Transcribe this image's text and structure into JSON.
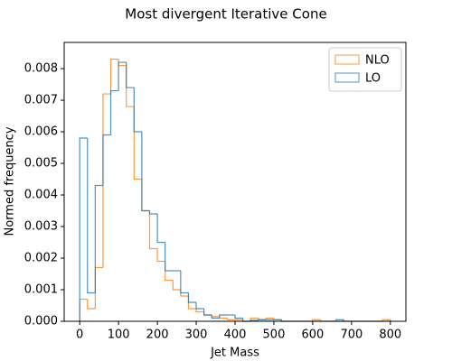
{
  "chart_data": {
    "type": "histogram",
    "title": "Most divergent Iterative Cone",
    "xlabel": "Jet Mass",
    "ylabel": "Normed frequency",
    "bins": [
      0,
      20,
      40,
      60,
      80,
      100,
      120,
      140,
      160,
      180,
      200,
      220,
      240,
      260,
      280,
      300,
      320,
      340,
      360,
      380,
      400,
      420,
      440,
      460,
      480,
      500,
      520,
      540,
      560,
      580,
      600,
      620,
      640,
      660,
      680,
      700,
      720,
      740,
      760,
      780,
      800
    ],
    "series": [
      {
        "name": "NLO",
        "color": "#ff7f0e",
        "values": [
          0.0007,
          0.0004,
          0.0017,
          0.0072,
          0.0083,
          0.0081,
          0.0068,
          0.0045,
          0.0035,
          0.0023,
          0.0019,
          0.0013,
          0.001,
          0.0008,
          0.0004,
          0.0003,
          0.0002,
          0.00015,
          0.0001,
          5e-05,
          5e-05,
          0,
          0.0001,
          5e-05,
          0.0001,
          5e-05,
          0,
          0,
          0,
          0,
          5e-05,
          0,
          0,
          0,
          0,
          0,
          0,
          0,
          0,
          5e-05
        ]
      },
      {
        "name": "LO",
        "color": "#1f77b4",
        "values": [
          0.0058,
          0.0009,
          0.0043,
          0.0059,
          0.0073,
          0.0082,
          0.0074,
          0.006,
          0.0035,
          0.0034,
          0.0025,
          0.0016,
          0.0016,
          0.0009,
          0.0006,
          0.0004,
          0.0002,
          0.0001,
          0.0002,
          0.0002,
          0.0001,
          0,
          3e-05,
          5e-05,
          5e-05,
          5e-05,
          0,
          0,
          0,
          0,
          0,
          0,
          0,
          5e-05,
          0,
          0,
          0,
          0,
          0,
          0
        ]
      }
    ],
    "xlim": [
      -40,
      840
    ],
    "xticks": [
      0,
      100,
      200,
      300,
      400,
      500,
      600,
      700,
      800
    ],
    "ylim": [
      0,
      0.00883
    ],
    "yticks": [
      {
        "value": 0,
        "label": "0.000"
      },
      {
        "value": 0.001,
        "label": "0.001"
      },
      {
        "value": 0.002,
        "label": "0.002"
      },
      {
        "value": 0.003,
        "label": "0.003"
      },
      {
        "value": 0.004,
        "label": "0.004"
      },
      {
        "value": 0.005,
        "label": "0.005"
      },
      {
        "value": 0.006,
        "label": "0.006"
      },
      {
        "value": 0.007,
        "label": "0.007"
      },
      {
        "value": 0.008,
        "label": "0.008"
      }
    ],
    "legend": "upper right"
  }
}
